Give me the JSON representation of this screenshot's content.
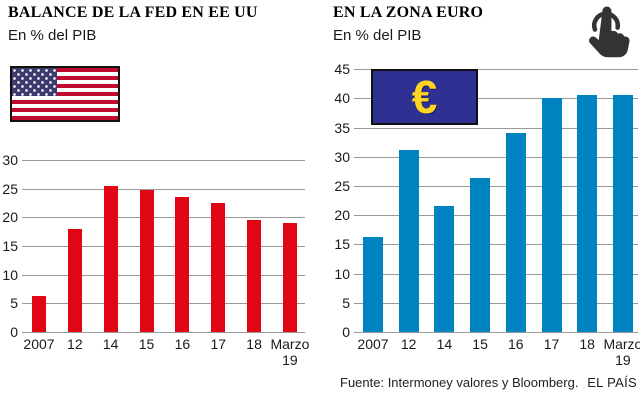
{
  "page": {
    "footer_source": "Fuente: Intermoney valores y Bloomberg.",
    "footer_brand": "EL PAÍS"
  },
  "colors": {
    "fed_bar": "#e00613",
    "euro_bar": "#0083c1",
    "gridline": "#999999",
    "text": "#1a1a1a",
    "us_flag_stripe": "#bf0a30",
    "us_flag_canton": "#3c3b6e",
    "eu_flag_bg": "#2e3192",
    "eu_flag_symbol": "#ffd420",
    "hand_icon": "#333333"
  },
  "eu_flag": {
    "symbol": "€"
  },
  "chart_data": [
    {
      "id": "fed",
      "type": "bar",
      "title": "BALANCE DE LA FED EN EE UU",
      "subtitle": "En % del PIB",
      "categories": [
        "2007",
        "12",
        "14",
        "15",
        "16",
        "17",
        "18",
        "Marzo 19"
      ],
      "values": [
        6.2,
        17.9,
        25.4,
        24.7,
        23.6,
        22.5,
        19.6,
        19.0
      ],
      "xlabel": "",
      "ylabel": "% del PIB",
      "ylim": [
        0,
        30
      ],
      "ytick_step": 5,
      "grid": true,
      "legend": "none",
      "bar_color": "#e00613",
      "flag": "us"
    },
    {
      "id": "euro",
      "type": "bar",
      "title": "EN LA ZONA EURO",
      "subtitle": "En % del PIB",
      "categories": [
        "2007",
        "12",
        "14",
        "15",
        "16",
        "17",
        "18",
        "Marzo 19"
      ],
      "values": [
        16.3,
        31.2,
        21.5,
        26.3,
        34.0,
        40.0,
        40.6,
        40.6
      ],
      "xlabel": "",
      "ylabel": "% del PIB",
      "ylim": [
        0,
        45
      ],
      "ytick_step": 5,
      "grid": true,
      "legend": "none",
      "bar_color": "#0083c1",
      "flag": "euro"
    }
  ]
}
